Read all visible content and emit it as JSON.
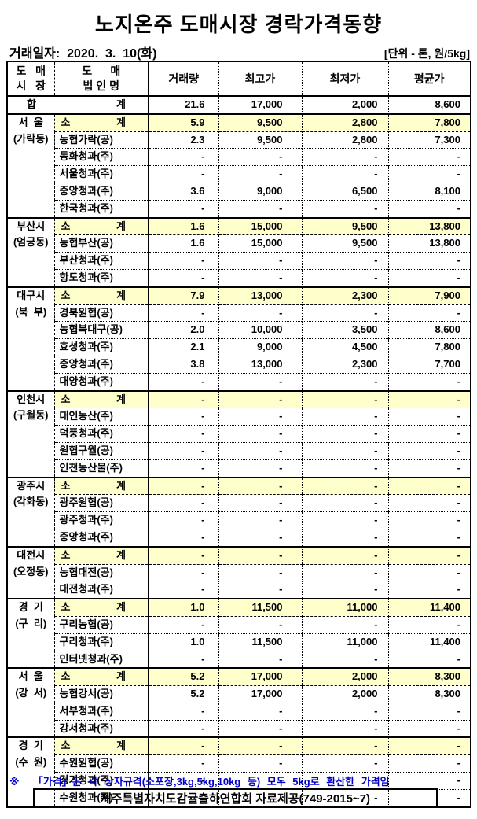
{
  "title": "노지온주 도매시장 경락가격동향",
  "date_label": "거래일자:  2020.  3.  10(화)",
  "unit_label": "[단위 - 톤, 원/5kg]",
  "colors": {
    "highlight": "#FFFFCC",
    "note_blue": "#0000CC",
    "border": "#000000"
  },
  "footnote": "※  「가격」은 각 상자규격(소포장,3kg,5kg,10kg 등) 모두 5kg로 환산한 가격임",
  "source_box": "제주특별자치도감귤출하연합회 자료제공(749-2015~7)",
  "table": {
    "headers": {
      "market": "도   매\n시   장",
      "corp": "도      매\n법 인 명",
      "volume": "거래량",
      "high": "최고가",
      "low": "최저가",
      "avg": "평균가"
    },
    "total_row": {
      "label_left": "합",
      "label_right": "계",
      "values": [
        "21.6",
        "17,000",
        "2,000",
        "8,600"
      ]
    },
    "groups": [
      {
        "market_lines": [
          "서  울",
          "(가락동)"
        ],
        "rows": [
          {
            "type": "subtotal",
            "label_left": "소",
            "label_right": "계",
            "values": [
              "5.9",
              "9,500",
              "2,800",
              "7,800"
            ]
          },
          {
            "type": "company",
            "name": "농협가락(공)",
            "values": [
              "2.3",
              "9,500",
              "2,800",
              "7,300"
            ]
          },
          {
            "type": "company",
            "name": "동화청과(주)",
            "values": [
              "-",
              "-",
              "-",
              "-"
            ]
          },
          {
            "type": "company",
            "name": "서울청과(주)",
            "values": [
              "-",
              "-",
              "-",
              "-"
            ]
          },
          {
            "type": "company",
            "name": "중앙청과(주)",
            "values": [
              "3.6",
              "9,000",
              "6,500",
              "8,100"
            ]
          },
          {
            "type": "company",
            "name": "한국청과(주)",
            "values": [
              "-",
              "-",
              "-",
              "-"
            ]
          }
        ]
      },
      {
        "market_lines": [
          "부산시",
          "(엄궁동)"
        ],
        "rows": [
          {
            "type": "subtotal",
            "label_left": "소",
            "label_right": "계",
            "values": [
              "1.6",
              "15,000",
              "9,500",
              "13,800"
            ]
          },
          {
            "type": "company",
            "name": "농협부산(공)",
            "values": [
              "1.6",
              "15,000",
              "9,500",
              "13,800"
            ]
          },
          {
            "type": "company",
            "name": "부산청과(주)",
            "values": [
              "-",
              "-",
              "-",
              "-"
            ]
          },
          {
            "type": "company",
            "name": "항도청과(주)",
            "values": [
              "-",
              "-",
              "-",
              "-"
            ]
          }
        ]
      },
      {
        "market_lines": [
          "대구시",
          "(북  부)"
        ],
        "rows": [
          {
            "type": "subtotal",
            "label_left": "소",
            "label_right": "계",
            "values": [
              "7.9",
              "13,000",
              "2,300",
              "7,900"
            ]
          },
          {
            "type": "company",
            "name": "경북원협(공)",
            "values": [
              "-",
              "-",
              "-",
              "-"
            ]
          },
          {
            "type": "company",
            "name": "농협북대구(공)",
            "values": [
              "2.0",
              "10,000",
              "3,500",
              "8,600"
            ]
          },
          {
            "type": "company",
            "name": "효성청과(주)",
            "values": [
              "2.1",
              "9,000",
              "4,500",
              "7,800"
            ]
          },
          {
            "type": "company",
            "name": "중앙청과(주)",
            "values": [
              "3.8",
              "13,000",
              "2,300",
              "7,700"
            ]
          },
          {
            "type": "company",
            "name": "대양청과(주)",
            "values": [
              "-",
              "-",
              "-",
              "-"
            ]
          }
        ]
      },
      {
        "market_lines": [
          "인천시",
          "(구월동)"
        ],
        "rows": [
          {
            "type": "subtotal",
            "label_left": "소",
            "label_right": "계",
            "values": [
              "-",
              "-",
              "-",
              "-"
            ]
          },
          {
            "type": "company",
            "name": "대인농산(주)",
            "values": [
              "-",
              "-",
              "-",
              "-"
            ]
          },
          {
            "type": "company",
            "name": "덕풍청과(주)",
            "values": [
              "-",
              "-",
              "-",
              "-"
            ]
          },
          {
            "type": "company",
            "name": "원협구월(공)",
            "values": [
              "-",
              "-",
              "-",
              "-"
            ]
          },
          {
            "type": "company",
            "name": "인천농산물(주)",
            "values": [
              "-",
              "-",
              "-",
              "-"
            ]
          }
        ]
      },
      {
        "market_lines": [
          "광주시",
          "(각화동)"
        ],
        "rows": [
          {
            "type": "subtotal",
            "label_left": "소",
            "label_right": "계",
            "values": [
              "-",
              "-",
              "-",
              "-"
            ]
          },
          {
            "type": "company",
            "name": "광주원협(공)",
            "values": [
              "-",
              "-",
              "-",
              "-"
            ]
          },
          {
            "type": "company",
            "name": "광주청과(주)",
            "values": [
              "-",
              "-",
              "-",
              "-"
            ]
          },
          {
            "type": "company",
            "name": "중앙청과(주)",
            "values": [
              "-",
              "-",
              "-",
              "-"
            ]
          }
        ]
      },
      {
        "market_lines": [
          "대전시",
          "(오정동)"
        ],
        "rows": [
          {
            "type": "subtotal",
            "label_left": "소",
            "label_right": "계",
            "values": [
              "-",
              "-",
              "-",
              "-"
            ]
          },
          {
            "type": "company",
            "name": "농협대전(공)",
            "values": [
              "-",
              "-",
              "-",
              "-"
            ]
          },
          {
            "type": "company",
            "name": "대전청과(주)",
            "values": [
              "-",
              "-",
              "-",
              "-"
            ]
          }
        ]
      },
      {
        "market_lines": [
          "경  기",
          "(구  리)"
        ],
        "rows": [
          {
            "type": "subtotal",
            "label_left": "소",
            "label_right": "계",
            "values": [
              "1.0",
              "11,500",
              "11,000",
              "11,400"
            ]
          },
          {
            "type": "company",
            "name": "구리농협(공)",
            "values": [
              "-",
              "-",
              "-",
              "-"
            ]
          },
          {
            "type": "company",
            "name": "구리청과(주)",
            "values": [
              "1.0",
              "11,500",
              "11,000",
              "11,400"
            ]
          },
          {
            "type": "company",
            "name": "인터넷청과(주)",
            "values": [
              "-",
              "-",
              "-",
              "-"
            ]
          }
        ]
      },
      {
        "market_lines": [
          "서  울",
          "(강  서)"
        ],
        "rows": [
          {
            "type": "subtotal",
            "label_left": "소",
            "label_right": "계",
            "values": [
              "5.2",
              "17,000",
              "2,000",
              "8,300"
            ]
          },
          {
            "type": "company",
            "name": "농협강서(공)",
            "values": [
              "5.2",
              "17,000",
              "2,000",
              "8,300"
            ]
          },
          {
            "type": "company",
            "name": "서부청과(주)",
            "values": [
              "-",
              "-",
              "-",
              "-"
            ]
          },
          {
            "type": "company",
            "name": "강서청과(주)",
            "values": [
              "-",
              "-",
              "-",
              "-"
            ]
          }
        ]
      },
      {
        "market_lines": [
          "경  기",
          "(수  원)"
        ],
        "rows": [
          {
            "type": "subtotal",
            "label_left": "소",
            "label_right": "계",
            "values": [
              "-",
              "-",
              "-",
              "-"
            ]
          },
          {
            "type": "company",
            "name": "수원원협(공)",
            "values": [
              "-",
              "-",
              "-",
              "-"
            ]
          },
          {
            "type": "company",
            "name": "경기청과(주)",
            "values": [
              "-",
              "-",
              "-",
              "-"
            ]
          },
          {
            "type": "company",
            "name": "수원청과(주)",
            "values": [
              "-",
              "-",
              "-",
              "-"
            ]
          }
        ]
      }
    ]
  }
}
